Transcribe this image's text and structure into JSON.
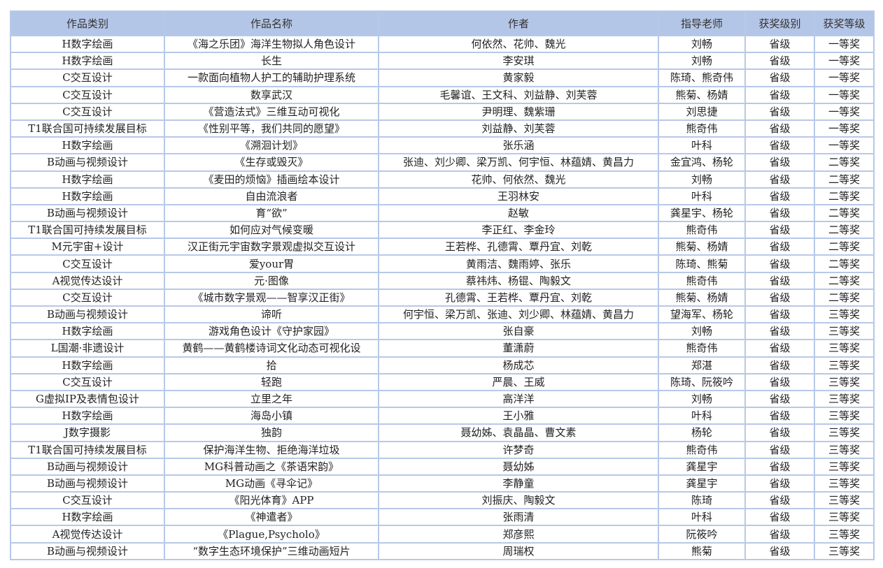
{
  "table": {
    "headers": [
      "作品类别",
      "作品名称",
      "作者",
      "指导老师",
      "获奖级别",
      "获奖等级"
    ],
    "rows": [
      [
        "H数字绘画",
        "《海之乐团》海洋生物拟人角色设计",
        "何依然、花帅、魏光",
        "刘畅",
        "省级",
        "一等奖"
      ],
      [
        "H数字绘画",
        "长生",
        "李安琪",
        "刘畅",
        "省级",
        "一等奖"
      ],
      [
        "C交互设计",
        "一款面向植物人护工的辅助护理系统",
        "黄家毅",
        "陈琦、熊奇伟",
        "省级",
        "一等奖"
      ],
      [
        "C交互设计",
        "数享武汉",
        "毛馨谊、王文科、刘益静、刘芙蓉",
        "熊菊、杨婧",
        "省级",
        "一等奖"
      ],
      [
        "C交互设计",
        "《营造法式》三维互动可视化",
        "尹明理、魏紫珊",
        "刘思捷",
        "省级",
        "一等奖"
      ],
      [
        "T1联合国可持续发展目标",
        "《性别平等，我们共同的愿望》",
        "刘益静、刘芙蓉",
        "熊奇伟",
        "省级",
        "一等奖"
      ],
      [
        "H数字绘画",
        "《溯洄计划》",
        "张乐涵",
        "叶科",
        "省级",
        "一等奖"
      ],
      [
        "B动画与视频设计",
        "《生存或毁灭》",
        "张迪、刘少卿、梁万凯、何宇恒、林蕴婧、黄昌力",
        "金宜鸿、杨轮",
        "省级",
        "二等奖"
      ],
      [
        "H数字绘画",
        "《麦田的烦恼》插画绘本设计",
        "花帅、何依然、魏光",
        "刘畅",
        "省级",
        "二等奖"
      ],
      [
        "H数字绘画",
        "自由流浪者",
        "王羽林安",
        "叶科",
        "省级",
        "二等奖"
      ],
      [
        "B动画与视频设计",
        "育“欲”",
        "赵敏",
        "龚星宇、杨轮",
        "省级",
        "二等奖"
      ],
      [
        "T1联合国可持续发展目标",
        "如何应对气候变暖",
        "李正红、李金玲",
        "熊奇伟",
        "省级",
        "二等奖"
      ],
      [
        "M元宇宙+设计",
        "汉正街元宇宙数字景观虚拟交互设计",
        "王若桦、孔德霄、覃丹宜、刘乾",
        "熊菊、杨婧",
        "省级",
        "二等奖"
      ],
      [
        "C交互设计",
        "爱your胃",
        "黄雨洁、魏雨婷、张乐",
        "陈琦、熊菊",
        "省级",
        "二等奖"
      ],
      [
        "A视觉传达设计",
        "元·图像",
        "蔡祎炜、杨锟、陶毅文",
        "熊奇伟",
        "省级",
        "二等奖"
      ],
      [
        "C交互设计",
        "《城市数字景观——智享汉正街》",
        "孔德霄、王若桦、覃丹宜、刘乾",
        "熊菊、杨婧",
        "省级",
        "二等奖"
      ],
      [
        "B动画与视频设计",
        "谛听",
        "何宇恒、梁万凯、张迪、刘少卿、林蕴婧、黄昌力",
        "望海军、杨轮",
        "省级",
        "三等奖"
      ],
      [
        "H数字绘画",
        "游戏角色设计《守护家园》",
        "张自豪",
        "刘畅",
        "省级",
        "三等奖"
      ],
      [
        "L国潮·非遗设计",
        "黄鹤——黄鹤楼诗词文化动态可视化设",
        "董潇蔚",
        "熊奇伟",
        "省级",
        "三等奖"
      ],
      [
        "H数字绘画",
        "拾",
        "杨成芯",
        "郑湛",
        "省级",
        "三等奖"
      ],
      [
        "C交互设计",
        "轻跑",
        "严晨、王威",
        "陈琦、阮筱吟",
        "省级",
        "三等奖"
      ],
      [
        "G虚拟IP及表情包设计",
        "立里之年",
        "高洋洋",
        "刘畅",
        "省级",
        "三等奖"
      ],
      [
        "H数字绘画",
        "海岛小镇",
        "王小雅",
        "叶科",
        "省级",
        "三等奖"
      ],
      [
        "J数字摄影",
        "独韵",
        "聂幼姊、袁晶晶、曹文素",
        "杨轮",
        "省级",
        "三等奖"
      ],
      [
        "T1联合国可持续发展目标",
        "保护海洋生物、拒绝海洋垃圾",
        "许梦奇",
        "熊奇伟",
        "省级",
        "三等奖"
      ],
      [
        "B动画与视频设计",
        "MG科普动画之《茶语宋韵》",
        "聂幼姊",
        "龚星宇",
        "省级",
        "三等奖"
      ],
      [
        "B动画与视频设计",
        "MG动画《寻伞记》",
        "李静童",
        "龚星宇",
        "省级",
        "三等奖"
      ],
      [
        "C交互设计",
        "《阳光体育》APP",
        "刘振庆、陶毅文",
        "陈琦",
        "省级",
        "三等奖"
      ],
      [
        "H数字绘画",
        "《神遣者》",
        "张雨清",
        "叶科",
        "省级",
        "三等奖"
      ],
      [
        "A视觉传达设计",
        "《Plague,Psycholo》",
        "郑彦熙",
        "阮筱吟",
        "省级",
        "三等奖"
      ],
      [
        "B动画与视频设计",
        "“数字生态环境保护”三维动画短片",
        "周瑞权",
        "熊菊",
        "省级",
        "三等奖"
      ]
    ]
  },
  "colors": {
    "header_bg": "#b4c6e7",
    "border": "#b7c8e8"
  }
}
